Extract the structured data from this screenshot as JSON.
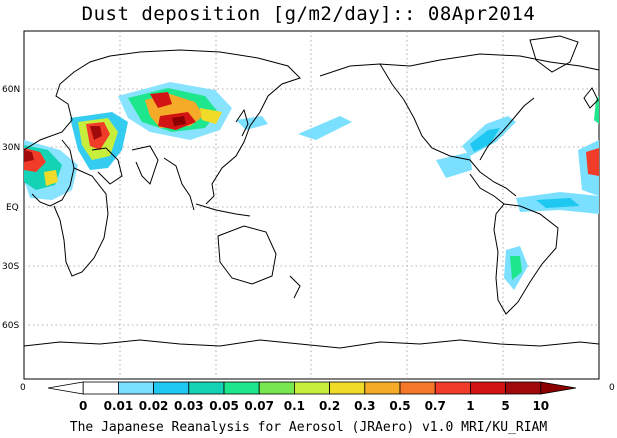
{
  "title": "Dust deposition [g/m2/day]:: 08Apr2014",
  "footer": "The Japanese Reanalysis for Aerosol (JRAero) v1.0 MRI/KU_RIAM",
  "map": {
    "lat_labels": [
      "60N",
      "30N",
      "EQ",
      "30S",
      "60S"
    ],
    "edge_labels": {
      "left": "0",
      "right": "0"
    },
    "colors": {
      "coast": "#000000",
      "grid": "#aaaaaa"
    }
  },
  "colorbar": {
    "labels": [
      "0",
      "0.01",
      "0.02",
      "0.03",
      "0.05",
      "0.07",
      "0.1",
      "0.2",
      "0.3",
      "0.5",
      "0.7",
      "1",
      "5",
      "10"
    ],
    "colors": [
      "#ffffff",
      "#ffffff",
      "#7be0ff",
      "#1ec8f0",
      "#14d2b4",
      "#1ee68c",
      "#78e650",
      "#c8ee3c",
      "#f0dc28",
      "#f5aa28",
      "#f57828",
      "#f03c28",
      "#d21414",
      "#a00a0a",
      "#8c0000"
    ]
  }
}
